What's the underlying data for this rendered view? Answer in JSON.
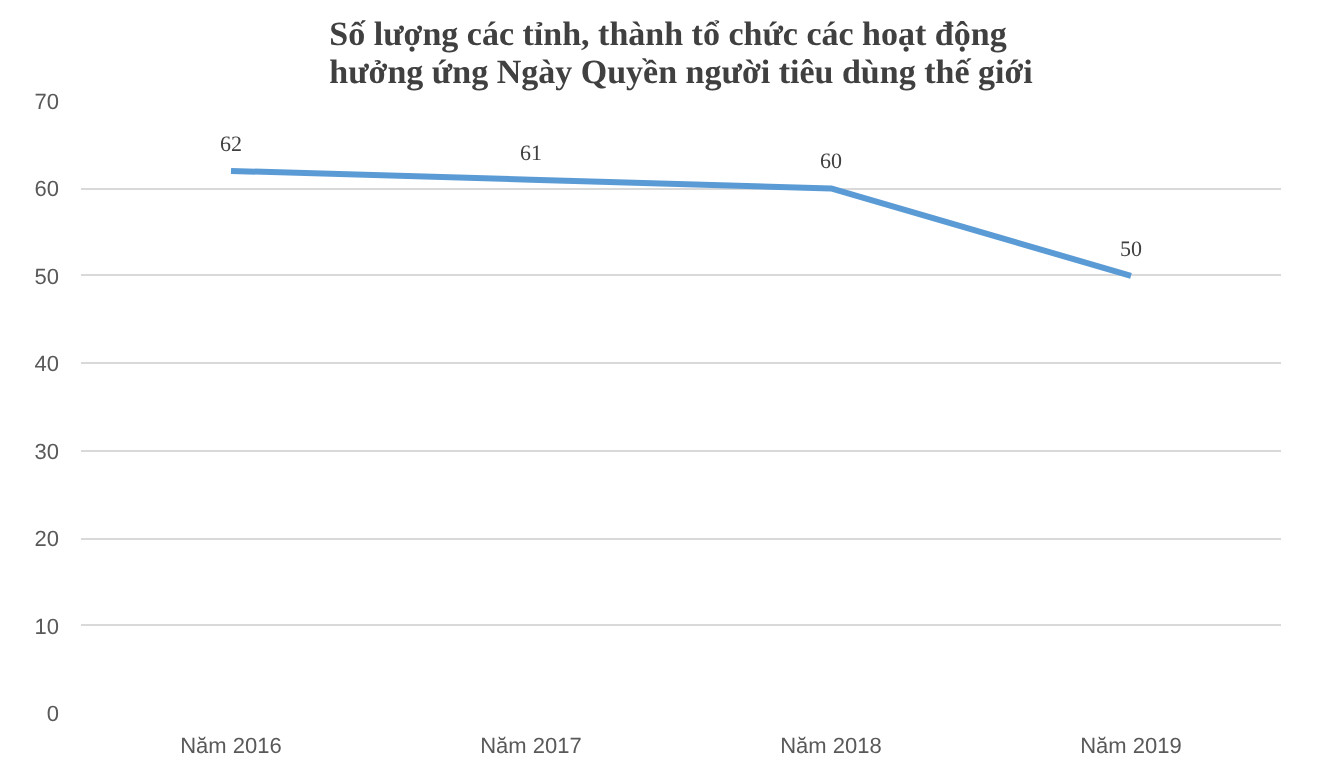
{
  "chart_data": {
    "type": "line",
    "title": "Số lượng các tỉnh, thành tổ chức các hoạt động hưởng ứng Ngày Quyền người tiêu dùng thế giới",
    "categories": [
      "Năm 2016",
      "Năm 2017",
      "Năm 2018",
      "Năm 2019"
    ],
    "series": [
      {
        "color": "#5b9bd5",
        "values": [
          62,
          61,
          60,
          50
        ]
      }
    ],
    "ylim": [
      0,
      70
    ],
    "yticks": [
      0,
      10,
      20,
      30,
      40,
      50,
      60,
      70
    ],
    "grid": "y",
    "data_labels": true,
    "marker": "none",
    "line_style": "solid"
  }
}
